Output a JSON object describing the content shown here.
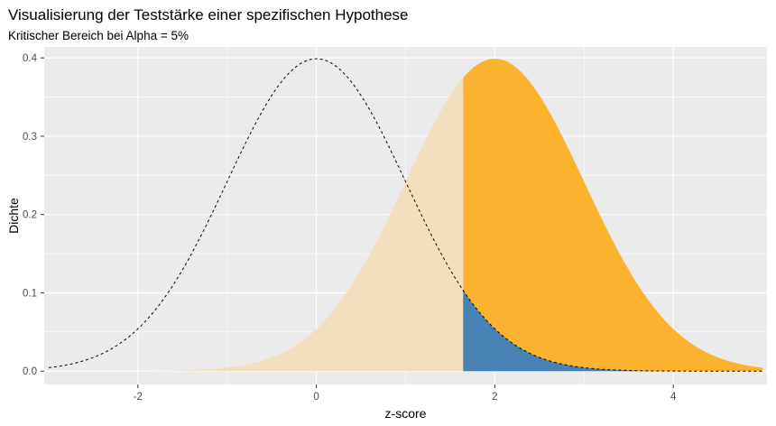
{
  "chart_data": {
    "type": "area",
    "title": "Visualisierung der Teststärke einer spezifischen Hypothese",
    "subtitle": "Kritischer Bereich bei Alpha = 5%",
    "xlabel": "z-score",
    "ylabel": "Dichte",
    "xlim": [
      -3.05,
      5.05
    ],
    "ylim": [
      -0.017,
      0.414
    ],
    "x_ticks": [
      -2,
      0,
      2,
      4
    ],
    "x_tick_labels": [
      "-2",
      "0",
      "2",
      "4"
    ],
    "y_ticks": [
      0.0,
      0.1,
      0.2,
      0.3,
      0.4
    ],
    "y_tick_labels": [
      "0.0",
      "0.1",
      "0.2",
      "0.3",
      "0.4"
    ],
    "grid": true,
    "critical_value": 1.645,
    "series": [
      {
        "distribution": "normal",
        "mean": 0,
        "sd": 1,
        "x_range": [
          -3,
          5
        ],
        "style": "dashed",
        "color": "#000000"
      },
      {
        "distribution": "normal",
        "mean": 2,
        "sd": 1,
        "x_range": [
          -2,
          1.645
        ],
        "style": "fill",
        "color": "#f2dfbd"
      },
      {
        "distribution": "normal",
        "mean": 2,
        "sd": 1,
        "x_range": [
          1.645,
          5
        ],
        "style": "fill",
        "color": "#fbb22f"
      },
      {
        "distribution": "normal",
        "mean": 0,
        "sd": 1,
        "x_range": [
          1.645,
          5
        ],
        "style": "fill",
        "color": "#4682b4"
      }
    ]
  }
}
